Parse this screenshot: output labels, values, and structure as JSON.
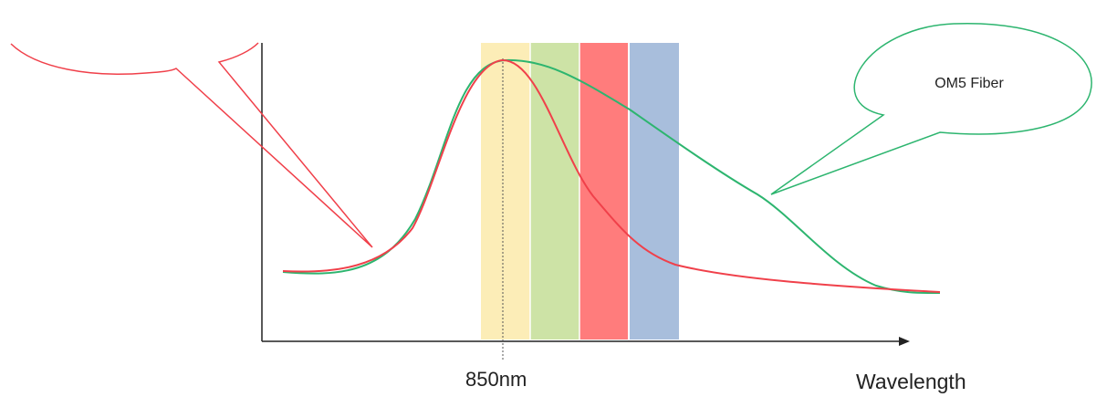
{
  "diagram": {
    "x_label": "Wavelength",
    "marker_label": "850nm",
    "callout_green_text": "OM5 Fiber",
    "callout_red_text": "",
    "bands": [
      {
        "name": "band-yellow",
        "color": "#FCEDB7"
      },
      {
        "name": "band-green",
        "color": "#CDE3A6"
      },
      {
        "name": "band-red",
        "color": "#FF7C7C"
      },
      {
        "name": "band-blue",
        "color": "#A8BEDC"
      }
    ],
    "curve_colors": {
      "red_curve": "#F0404A",
      "green_curve": "#2DB56F",
      "axis": "#222222"
    }
  }
}
